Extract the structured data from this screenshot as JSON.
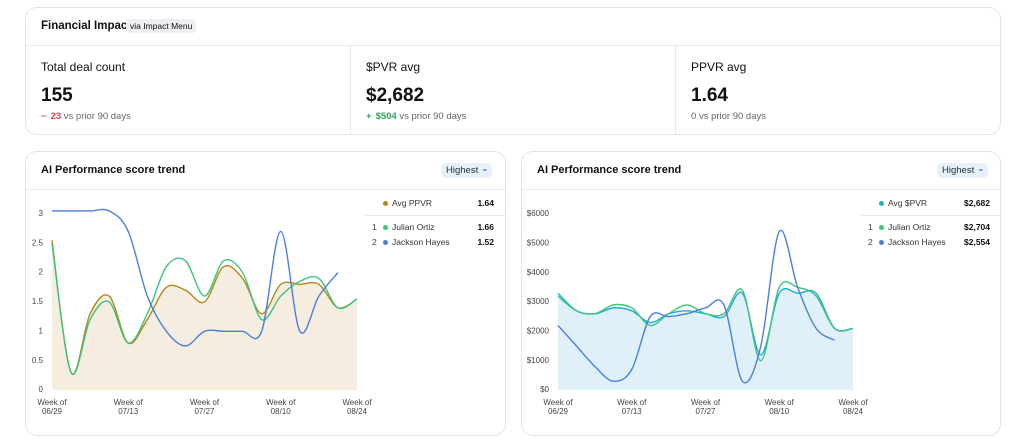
{
  "header": {
    "title": "Financial Impact",
    "badge": "via Impact Menu"
  },
  "kpis": [
    {
      "label": "Total deal count",
      "value": 155,
      "delta": "23",
      "trend": "down",
      "note": "vs prior 90 days"
    },
    {
      "label": "$PVR avg",
      "value": 2682,
      "value_label": "$2,682",
      "delta": "$504",
      "trend": "up",
      "note": "vs prior 90 days"
    },
    {
      "label": "PPVR avg",
      "value": 1.64,
      "delta": "0",
      "trend": "flat",
      "note": "vs prior 90 days"
    }
  ],
  "charts": [
    {
      "type": "line",
      "title": "AI Performance score trend",
      "button": "Highest",
      "area_fill": "#f5eddf",
      "categories": [
        "Week of 06/29",
        null,
        null,
        null,
        "Week of 07/13",
        null,
        null,
        null,
        "Week of 07/27",
        null,
        null,
        null,
        "Week of 08/10",
        null,
        null,
        null,
        "Week of 08/24"
      ],
      "ylim": [
        0,
        3.1
      ],
      "yticks": [
        0,
        0.5,
        1,
        1.5,
        2,
        2.5,
        3
      ],
      "series": [
        {
          "name": "Avg PPVR",
          "color": "#b8861b",
          "summary": 1.64,
          "values": [
            2.55,
            0.3,
            1.3,
            1.6,
            0.8,
            1.2,
            1.75,
            1.7,
            1.5,
            2.1,
            1.9,
            1.3,
            1.8,
            1.8,
            1.8,
            1.4,
            1.55
          ]
        },
        {
          "name": "Julian Ortiz",
          "rank": 1,
          "color": "#3cc47c",
          "summary": 1.66,
          "values": [
            2.5,
            0.3,
            1.2,
            1.5,
            0.8,
            1.3,
            2.1,
            2.2,
            1.6,
            2.2,
            2.0,
            1.2,
            1.6,
            1.85,
            1.9,
            1.4,
            1.55
          ]
        },
        {
          "name": "Jackson Hayes",
          "rank": 2,
          "color": "#4a7fe0",
          "summary": 1.52,
          "values": [
            3.05,
            3.05,
            3.05,
            3.05,
            2.7,
            1.6,
            1.0,
            0.75,
            1.0,
            1.0,
            1.0,
            1.0,
            2.7,
            1.0,
            1.6,
            2.0,
            null
          ]
        }
      ]
    },
    {
      "type": "line",
      "title": "AI Performance score trend",
      "button": "Highest",
      "area_fill": "#dff0f9",
      "categories": [
        "Week of 06/29",
        null,
        null,
        null,
        "Week of 07/13",
        null,
        null,
        null,
        "Week of 07/27",
        null,
        null,
        null,
        "Week of 08/10",
        null,
        null,
        null,
        "Week of 08/24"
      ],
      "ylim": [
        0,
        6000
      ],
      "yticks": [
        {
          "value": 0,
          "label": "$0"
        },
        {
          "value": 1000,
          "label": "$1000"
        },
        {
          "value": 2000,
          "label": "$2000"
        },
        {
          "value": 3000,
          "label": "$3000"
        },
        {
          "value": 4000,
          "label": "$4000"
        },
        {
          "value": 5000,
          "label": "$5000"
        },
        {
          "value": 6000,
          "label": "$6000"
        }
      ],
      "series": [
        {
          "name": "Avg $PVR",
          "color": "#22aed0",
          "summary": 2682,
          "summary_label": "$2,682",
          "values": [
            3300,
            2700,
            2600,
            2800,
            2700,
            2300,
            2600,
            2700,
            2600,
            2500,
            3300,
            1200,
            3300,
            3300,
            3300,
            2100,
            2100
          ]
        },
        {
          "name": "Julian Ortiz",
          "rank": 1,
          "color": "#3cc47c",
          "summary": 2704,
          "summary_label": "$2,704",
          "values": [
            3200,
            2700,
            2600,
            2900,
            2800,
            2200,
            2600,
            2900,
            2600,
            2600,
            3400,
            1000,
            3500,
            3500,
            3200,
            2100,
            2100
          ]
        },
        {
          "name": "Jackson Hayes",
          "rank": 2,
          "color": "#4a7fe0",
          "summary": 2554,
          "summary_label": "$2,554",
          "values": [
            2200,
            1500,
            800,
            300,
            700,
            2500,
            2500,
            2600,
            2800,
            2900,
            300,
            1500,
            5400,
            3500,
            2100,
            1700,
            null
          ]
        }
      ]
    }
  ]
}
